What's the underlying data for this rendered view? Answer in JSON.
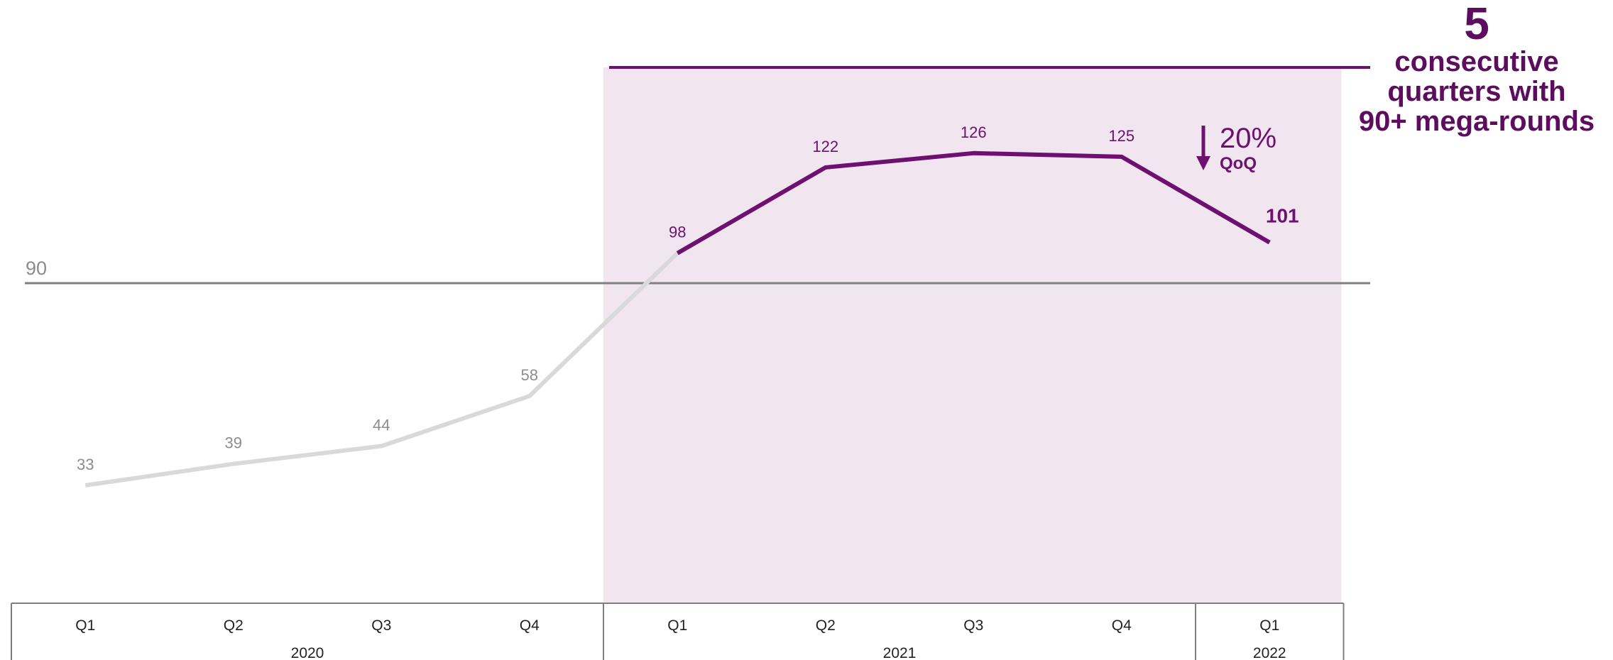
{
  "chart_data": {
    "type": "line",
    "categories": [
      "Q1",
      "Q2",
      "Q3",
      "Q4",
      "Q1",
      "Q2",
      "Q3",
      "Q4",
      "Q1"
    ],
    "year_groups": [
      {
        "label": "2020",
        "count": 4
      },
      {
        "label": "2021",
        "count": 4
      },
      {
        "label": "2022",
        "count": 1
      }
    ],
    "series": [
      {
        "values": [
          33,
          39,
          44,
          58,
          98,
          122,
          126,
          125,
          101
        ]
      }
    ],
    "highlight_from_index": 4,
    "reference_line": {
      "value": 90,
      "label": "90"
    },
    "ylim": [
      0,
      150
    ],
    "grid": false,
    "change_annotation": {
      "value": "20%",
      "label": "QoQ",
      "direction": "down"
    },
    "callout": {
      "number": "5",
      "lines": [
        "consecutive",
        "quarters with",
        "90+ mega-rounds"
      ]
    },
    "title": "",
    "xlabel": "",
    "ylabel": ""
  },
  "colors": {
    "highlight": "#6d1070",
    "muted_line": "#d9d9d9",
    "muted_label": "#8c8c8c",
    "band": "#f1e5f0",
    "reference": "#7f7f7f",
    "callout": "#5c0d5e",
    "axis": "#7f7f7f"
  }
}
